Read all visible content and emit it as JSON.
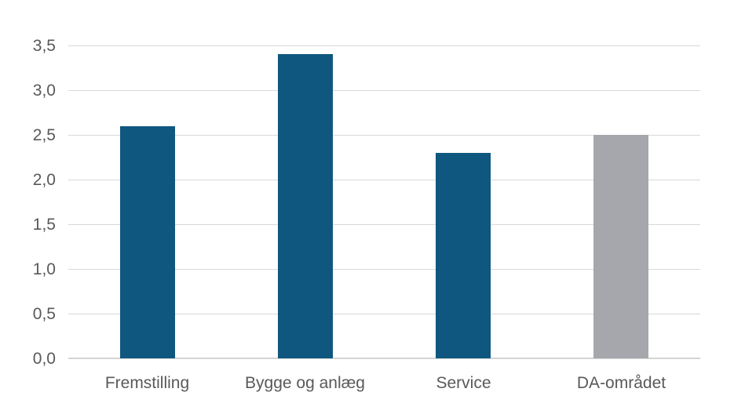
{
  "chart_data": {
    "type": "bar",
    "categories": [
      "Fremstilling",
      "Bygge og anlæg",
      "Service",
      "DA-området"
    ],
    "values": [
      2.6,
      3.4,
      2.3,
      2.5
    ],
    "bar_colors": [
      "#0f577f",
      "#0f577f",
      "#0f577f",
      "#a6a7ad"
    ],
    "title": "",
    "xlabel": "",
    "ylabel": "",
    "ylim": [
      0,
      3.5
    ],
    "ytick_step": 0.5,
    "ytick_labels": [
      "0,0",
      "0,5",
      "1,0",
      "1,5",
      "2,0",
      "2,5",
      "3,0",
      "3,5"
    ],
    "grid": true,
    "legend": false,
    "colors": {
      "bar_default": "#0f577f",
      "bar_da_area": "#a6a7ad",
      "tick_text": "#595959",
      "gridline": "#d9d9d9",
      "axis_line": "#d4d4d4",
      "background": "#ffffff"
    }
  }
}
